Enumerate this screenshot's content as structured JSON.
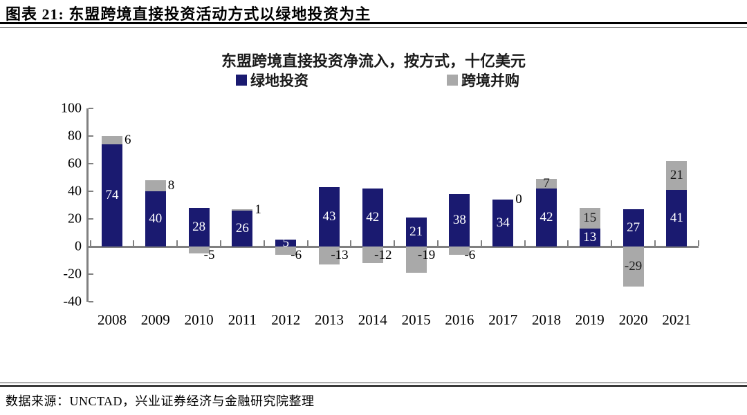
{
  "page": {
    "header_title": "图表 21: 东盟跨境直接投资活动方式以绿地投资为主",
    "footer_source": "数据来源：UNCTAD，兴业证券经济与金融研究院整理"
  },
  "chart_data": {
    "type": "bar",
    "stacked": true,
    "title": "东盟跨境直接投资净流入，按方式，十亿美元",
    "unit": "十亿美元",
    "categories": [
      "2008",
      "2009",
      "2010",
      "2011",
      "2012",
      "2013",
      "2014",
      "2015",
      "2016",
      "2017",
      "2018",
      "2019",
      "2020",
      "2021"
    ],
    "series": [
      {
        "name": "绿地投资",
        "color": "#1a1a70",
        "label_color": "#ffffff",
        "values": [
          74,
          40,
          28,
          26,
          5,
          43,
          42,
          21,
          38,
          34,
          42,
          13,
          27,
          41
        ]
      },
      {
        "name": "跨境并购",
        "color": "#a9a9a9",
        "label_color": "#1a1a1a",
        "values": [
          6,
          8,
          -5,
          1,
          -6,
          -13,
          -12,
          -19,
          -6,
          0,
          7,
          15,
          -29,
          21
        ],
        "label_pos": [
          "side",
          "side",
          "below",
          "side",
          "below",
          "below",
          "below",
          "below",
          "below",
          "side",
          "inside",
          "inside",
          "inside",
          "inside"
        ]
      }
    ],
    "ylim": [
      -40,
      100
    ],
    "ytick_step": 20,
    "yticks": [
      "100",
      "80",
      "60",
      "40",
      "20",
      "0",
      "-20",
      "-40"
    ],
    "legend_position": "top",
    "grid": false,
    "axis_color": "#808080"
  }
}
